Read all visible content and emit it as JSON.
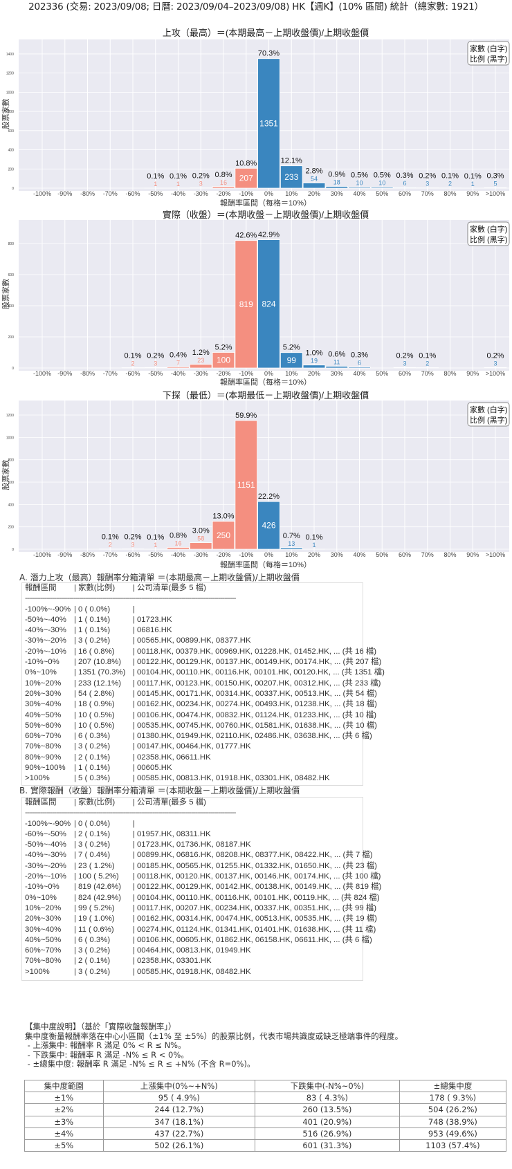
{
  "page_title": "202336 (交易: 2023/09/08; 日曆: 2023/09/04–2023/09/08) HK【週K】(10% 區間) 統計（總家數: 1921）",
  "colors": {
    "negative": "#f48f80",
    "positive": "#3a86bf",
    "plot_bg": "#eaeaf2"
  },
  "chart_data": [
    {
      "type": "bar",
      "title": "上攻（最高）＝(本期最高－上期收盤價)/上期收盤價",
      "xlabel": "報酬率區間（每格＝10%）",
      "ylabel": "股票家數",
      "categories": [
        "-100%",
        "-90%",
        "-80%",
        "-70%",
        "-60%",
        "-50%",
        "-40%",
        "-30%",
        "-20%",
        "-10%",
        "0%",
        "10%",
        "20%",
        "30%",
        "40%",
        "50%",
        "60%",
        "70%",
        "80%",
        "90%",
        ">100%"
      ],
      "values": [
        0,
        0,
        0,
        0,
        0,
        1,
        1,
        3,
        16,
        207,
        1351,
        233,
        54,
        18,
        10,
        10,
        6,
        3,
        2,
        1,
        5
      ],
      "percent_labels": [
        "",
        "",
        "",
        "",
        "",
        "0.1%",
        "0.1%",
        "0.2%",
        "0.8%",
        "10.8%",
        "70.3%",
        "12.1%",
        "2.8%",
        "0.9%",
        "0.5%",
        "0.5%",
        "0.3%",
        "0.2%",
        "0.1%",
        "0.1%",
        "0.3%"
      ],
      "ylim": [
        0,
        1551
      ],
      "yticks": [
        0,
        200,
        400,
        600,
        800,
        1000,
        1200,
        1400
      ],
      "legend": [
        "家數 (白字)",
        "比例 (黑字)"
      ],
      "legend_position": "top-right",
      "grid": true
    },
    {
      "type": "bar",
      "title": "實際（收盤）＝(本期收盤－上期收盤價)/上期收盤價",
      "xlabel": "報酬率區間（每格＝10%）",
      "ylabel": "股票家數",
      "categories": [
        "-100%",
        "-90%",
        "-80%",
        "-70%",
        "-60%",
        "-50%",
        "-40%",
        "-30%",
        "-20%",
        "-10%",
        "0%",
        "10%",
        "20%",
        "30%",
        "40%",
        "50%",
        "60%",
        "70%",
        "80%",
        "90%",
        ">100%"
      ],
      "values": [
        0,
        0,
        0,
        0,
        2,
        3,
        7,
        23,
        100,
        819,
        824,
        99,
        19,
        11,
        6,
        0,
        3,
        2,
        0,
        0,
        3
      ],
      "percent_labels": [
        "",
        "",
        "",
        "",
        "0.1%",
        "0.2%",
        "0.4%",
        "1.2%",
        "5.2%",
        "42.6%",
        "42.9%",
        "5.2%",
        "1.0%",
        "0.6%",
        "0.3%",
        "",
        "0.2%",
        "0.1%",
        "",
        "",
        "0.2%"
      ],
      "ylim": [
        0,
        951
      ],
      "yticks": [
        0,
        200,
        400,
        600,
        800
      ],
      "legend": [
        "家數 (白字)",
        "比例 (黑字)"
      ],
      "legend_position": "top-right",
      "grid": true
    },
    {
      "type": "bar",
      "title": "下探（最低）＝(本期最低－上期收盤價)/上期收盤價",
      "xlabel": "報酬率區間（每格＝10%）",
      "ylabel": "股票家數",
      "categories": [
        "-100%",
        "-90%",
        "-80%",
        "-70%",
        "-60%",
        "-50%",
        "-40%",
        "-30%",
        "-20%",
        "-10%",
        "0%",
        "10%",
        "20%",
        "30%",
        "40%",
        "50%",
        "60%",
        "70%",
        "80%",
        "90%",
        ">100%"
      ],
      "values": [
        0,
        0,
        0,
        2,
        3,
        1,
        16,
        58,
        250,
        1151,
        426,
        13,
        1,
        0,
        0,
        0,
        0,
        0,
        0,
        0,
        0
      ],
      "percent_labels": [
        "",
        "",
        "",
        "0.1%",
        "0.2%",
        "0.1%",
        "0.8%",
        "3.0%",
        "13.0%",
        "59.9%",
        "22.2%",
        "0.7%",
        "0.1%",
        "",
        "",
        "",
        "",
        "",
        "",
        "",
        ""
      ],
      "ylim": [
        0,
        1330
      ],
      "yticks": [
        0,
        200,
        400,
        600,
        800,
        1000,
        1200
      ],
      "legend": [
        "家數 (白字)",
        "比例 (黑字)"
      ],
      "legend_position": "top-right",
      "grid": true
    }
  ],
  "lists": [
    {
      "title": "A. 潛力上攻（最高）報酬率分箱清單 ＝(本期最高－上期收盤價)/上期收盤價",
      "header": {
        "range": "報酬區間",
        "count": "家數(比例)",
        "companies": "公司清單(最多 5 檔)"
      },
      "divider": "-------------------------------------------------------------------------------------------------------------",
      "rows": [
        {
          "range": "-100%~-90%",
          "count": "0 ( 0.0%)",
          "companies": ""
        },
        {
          "range": "-50%~-40%",
          "count": "1 ( 0.1%)",
          "companies": "01723.HK"
        },
        {
          "range": "-40%~-30%",
          "count": "1 ( 0.1%)",
          "companies": "06816.HK"
        },
        {
          "range": "-30%~-20%",
          "count": "3 ( 0.2%)",
          "companies": "00565.HK, 00899.HK, 08377.HK"
        },
        {
          "range": "-20%~-10%",
          "count": "16 ( 0.8%)",
          "companies": "00118.HK, 00379.HK, 00969.HK, 01228.HK, 01452.HK, ... (共 16 檔)"
        },
        {
          "range": "-10%~0%",
          "count": "207 (10.8%)",
          "companies": "00122.HK, 00129.HK, 00137.HK, 00149.HK, 00174.HK, ... (共 207 檔)"
        },
        {
          "range": "0%~10%",
          "count": "1351 (70.3%)",
          "companies": "00104.HK, 00110.HK, 00116.HK, 00101.HK, 00120.HK, ... (共 1351 檔)"
        },
        {
          "range": "10%~20%",
          "count": "233 (12.1%)",
          "companies": "00117.HK, 00123.HK, 00150.HK, 00207.HK, 00312.HK, ... (共 233 檔)"
        },
        {
          "range": "20%~30%",
          "count": "54 ( 2.8%)",
          "companies": "00145.HK, 00171.HK, 00314.HK, 00337.HK, 00513.HK, ... (共 54 檔)"
        },
        {
          "range": "30%~40%",
          "count": "18 ( 0.9%)",
          "companies": "00162.HK, 00234.HK, 00274.HK, 00493.HK, 01238.HK, ... (共 18 檔)"
        },
        {
          "range": "40%~50%",
          "count": "10 ( 0.5%)",
          "companies": "00106.HK, 00474.HK, 00832.HK, 01124.HK, 01233.HK, ... (共 10 檔)"
        },
        {
          "range": "50%~60%",
          "count": "10 ( 0.5%)",
          "companies": "00535.HK, 00745.HK, 00760.HK, 01581.HK, 01638.HK, ... (共 10 檔)"
        },
        {
          "range": "60%~70%",
          "count": "6 ( 0.3%)",
          "companies": "01380.HK, 01949.HK, 02110.HK, 02486.HK, 03638.HK, ... (共 6 檔)"
        },
        {
          "range": "70%~80%",
          "count": "3 ( 0.2%)",
          "companies": "00147.HK, 00464.HK, 01777.HK"
        },
        {
          "range": "80%~90%",
          "count": "2 ( 0.1%)",
          "companies": "02358.HK, 06611.HK"
        },
        {
          "range": "90%~100%",
          "count": "1 ( 0.1%)",
          "companies": "00605.HK"
        },
        {
          "range": ">100%",
          "count": "5 ( 0.3%)",
          "companies": "00585.HK, 00813.HK, 01918.HK, 03301.HK, 08482.HK"
        }
      ]
    },
    {
      "title": "B. 實際報酬（收盤）報酬率分箱清單 ＝(本期收盤－上期收盤價)/上期收盤價",
      "header": {
        "range": "報酬區間",
        "count": "家數(比例)",
        "companies": "公司清單(最多 5 檔)"
      },
      "divider": "-------------------------------------------------------------------------------------------------------------",
      "rows": [
        {
          "range": "-100%~-90%",
          "count": "0 ( 0.0%)",
          "companies": ""
        },
        {
          "range": "-60%~-50%",
          "count": "2 ( 0.1%)",
          "companies": "01957.HK, 08311.HK"
        },
        {
          "range": "-50%~-40%",
          "count": "3 ( 0.2%)",
          "companies": "01723.HK, 01736.HK, 08187.HK"
        },
        {
          "range": "-40%~-30%",
          "count": "7 ( 0.4%)",
          "companies": "00899.HK, 06816.HK, 08208.HK, 08377.HK, 08422.HK, ... (共 7 檔)"
        },
        {
          "range": "-30%~-20%",
          "count": "23 ( 1.2%)",
          "companies": "00185.HK, 00565.HK, 01255.HK, 01332.HK, 01650.HK, ... (共 23 檔)"
        },
        {
          "range": "-20%~-10%",
          "count": "100 ( 5.2%)",
          "companies": "00118.HK, 00120.HK, 00137.HK, 00146.HK, 00174.HK, ... (共 100 檔)"
        },
        {
          "range": "-10%~0%",
          "count": "819 (42.6%)",
          "companies": "00122.HK, 00129.HK, 00142.HK, 00138.HK, 00149.HK, ... (共 819 檔)"
        },
        {
          "range": "0%~10%",
          "count": "824 (42.9%)",
          "companies": "00104.HK, 00110.HK, 00116.HK, 00101.HK, 00119.HK, ... (共 824 檔)"
        },
        {
          "range": "10%~20%",
          "count": "99 ( 5.2%)",
          "companies": "00117.HK, 00207.HK, 00234.HK, 00337.HK, 00351.HK, ... (共 99 檔)"
        },
        {
          "range": "20%~30%",
          "count": "19 ( 1.0%)",
          "companies": "00162.HK, 00314.HK, 00474.HK, 00513.HK, 00535.HK, ... (共 19 檔)"
        },
        {
          "range": "30%~40%",
          "count": "11 ( 0.6%)",
          "companies": "00274.HK, 01124.HK, 01341.HK, 01401.HK, 01638.HK, ... (共 11 檔)"
        },
        {
          "range": "40%~50%",
          "count": "6 ( 0.3%)",
          "companies": "00106.HK, 00605.HK, 01862.HK, 06158.HK, 06611.HK, ... (共 6 檔)"
        },
        {
          "range": "60%~70%",
          "count": "3 ( 0.2%)",
          "companies": "00464.HK, 00813.HK, 01949.HK"
        },
        {
          "range": "70%~80%",
          "count": "2 ( 0.1%)",
          "companies": "02358.HK, 03301.HK"
        },
        {
          "range": ">100%",
          "count": "3 ( 0.2%)",
          "companies": "00585.HK, 01918.HK, 08482.HK"
        }
      ]
    }
  ],
  "concentration": {
    "title": "【集中度說明】（基於「實際收盤報酬率」）",
    "description": "集中度衡量報酬率落在中心小區間（±1% 至 ±5%）的股票比例，代表市場共識度或缺乏極端事件的程度。",
    "bullets": [
      " - 上漲集中: 報酬率 R 滿足 0% < R ≤ N%。",
      " - 下跌集中: 報酬率 R 滿足 -N% ≤ R < 0%。",
      " - ±總集中度: 報酬率 R 滿足 -N% ≤ R ≤ +N% (不含 R=0%)。"
    ],
    "table": {
      "headers": [
        "集中度範圍",
        "上漲集中(0%~+N%)",
        "下跌集中(-N%~0%)",
        "±總集中度"
      ],
      "rows": [
        [
          "±1%",
          "95 ( 4.9%)",
          "83 ( 4.3%)",
          "178 ( 9.3%)"
        ],
        [
          "±2%",
          "244 (12.7%)",
          "260 (13.5%)",
          "504 (26.2%)"
        ],
        [
          "±3%",
          "347 (18.1%)",
          "401 (20.9%)",
          "748 (38.9%)"
        ],
        [
          "±4%",
          "437 (22.7%)",
          "516 (26.9%)",
          "953 (49.6%)"
        ],
        [
          "±5%",
          "502 (26.1%)",
          "601 (31.3%)",
          "1103 (57.4%)"
        ]
      ]
    }
  }
}
